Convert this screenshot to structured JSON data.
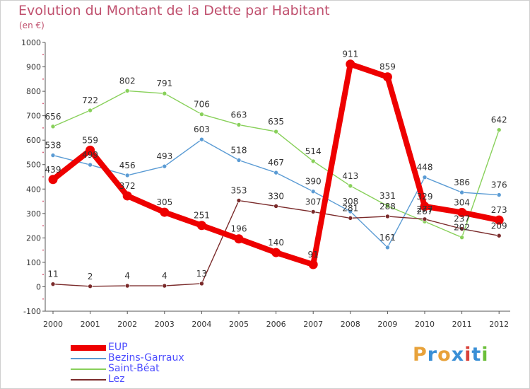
{
  "header": {
    "title": "Evolution du Montant de la Dette par Habitant",
    "subtitle": "(en €)"
  },
  "logo": {
    "letters": [
      "P",
      "r",
      "o",
      "x",
      "i",
      "t",
      "i"
    ],
    "colors": [
      "#e8a23a",
      "#3a8fd6",
      "#e8a23a",
      "#3a8fd6",
      "#d9423a",
      "#3a8fd6",
      "#6bbf3a"
    ]
  },
  "chart_data": {
    "type": "line",
    "title": "Evolution du Montant de la Dette par Habitant",
    "ylabel": "(en €)",
    "xlabel": "",
    "x": [
      2000,
      2001,
      2002,
      2003,
      2004,
      2005,
      2006,
      2007,
      2008,
      2009,
      2010,
      2011,
      2012
    ],
    "x_tick_labels": [
      "2000",
      "2001",
      "2002",
      "2003",
      "2004",
      "2005",
      "2006",
      "2007",
      "2008",
      "2009",
      "2010",
      "2011",
      "2012"
    ],
    "ylim": [
      -100,
      1000
    ],
    "y_ticks": [
      -100,
      0,
      100,
      200,
      300,
      400,
      500,
      600,
      700,
      800,
      900,
      1000
    ],
    "y_tick_labels": [
      "-100",
      "0",
      "100",
      "200",
      "300",
      "400",
      "500",
      "600",
      "700",
      "800",
      "900",
      "1000"
    ],
    "grid": false,
    "legend_position": "bottom-left",
    "series": [
      {
        "name": "EUP",
        "color": "#ee0000",
        "values": [
          439,
          559,
          372,
          305,
          251,
          196,
          140,
          91,
          911,
          859,
          329,
          304,
          273
        ],
        "labels": [
          "439",
          "559",
          "372",
          "305",
          "251",
          "196",
          "140",
          "91",
          "911",
          "859",
          "329",
          "304",
          "273"
        ]
      },
      {
        "name": "Bezins-Garraux",
        "color": "#5a9bd4",
        "values": [
          538,
          499,
          456,
          493,
          603,
          518,
          467,
          390,
          308,
          161,
          448,
          386,
          376
        ],
        "labels": [
          "538",
          "499",
          "456",
          "493",
          "603",
          "518",
          "467",
          "390",
          "308",
          "161",
          "448",
          "386",
          "376"
        ]
      },
      {
        "name": "Saint-Béat",
        "color": "#88d05a",
        "values": [
          656,
          722,
          802,
          791,
          706,
          663,
          635,
          514,
          413,
          331,
          267,
          202,
          642
        ],
        "labels": [
          "656",
          "722",
          "802",
          "791",
          "706",
          "663",
          "635",
          "514",
          "413",
          "331",
          "267",
          "202",
          "642"
        ]
      },
      {
        "name": "Lez",
        "color": "#7a2a2a",
        "values": [
          11,
          2,
          4,
          4,
          13,
          353,
          330,
          307,
          281,
          288,
          277,
          237,
          209
        ],
        "labels": [
          "11",
          "2",
          "4",
          "4",
          "13",
          "353",
          "330",
          "307",
          "281",
          "288",
          "277",
          "237",
          "209"
        ]
      }
    ]
  }
}
